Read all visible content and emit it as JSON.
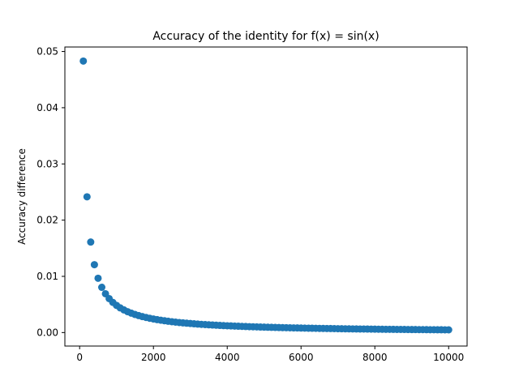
{
  "chart_data": {
    "type": "scatter",
    "title": "Accuracy of the identity for f(x) = sin(x)",
    "xlabel": "",
    "ylabel": "Accuracy difference",
    "xlim": [
      -400,
      10500
    ],
    "ylim": [
      -0.0024,
      0.0508
    ],
    "xticks": [
      0,
      2000,
      4000,
      6000,
      8000,
      10000
    ],
    "xtick_labels": [
      "0",
      "2000",
      "4000",
      "6000",
      "8000",
      "10000"
    ],
    "yticks": [
      0.0,
      0.01,
      0.02,
      0.03,
      0.04,
      0.05
    ],
    "ytick_labels": [
      "0.00",
      "0.01",
      "0.02",
      "0.03",
      "0.04",
      "0.05"
    ],
    "grid": false,
    "marker_color": "#1f77b4",
    "series": [
      {
        "x_start": 100,
        "x_step": 100,
        "x_end": 10000,
        "y_model": "y = 4.83 / x",
        "sample_points": [
          {
            "x": 100,
            "y": 0.0483
          },
          {
            "x": 200,
            "y": 0.0241
          },
          {
            "x": 300,
            "y": 0.0161
          },
          {
            "x": 400,
            "y": 0.012
          },
          {
            "x": 500,
            "y": 0.0097
          },
          {
            "x": 600,
            "y": 0.008
          },
          {
            "x": 700,
            "y": 0.0069
          },
          {
            "x": 1000,
            "y": 0.0048
          },
          {
            "x": 2000,
            "y": 0.0024
          },
          {
            "x": 4000,
            "y": 0.0012
          },
          {
            "x": 6000,
            "y": 0.0008
          },
          {
            "x": 8000,
            "y": 0.0006
          },
          {
            "x": 10000,
            "y": 0.0005
          }
        ]
      }
    ]
  }
}
